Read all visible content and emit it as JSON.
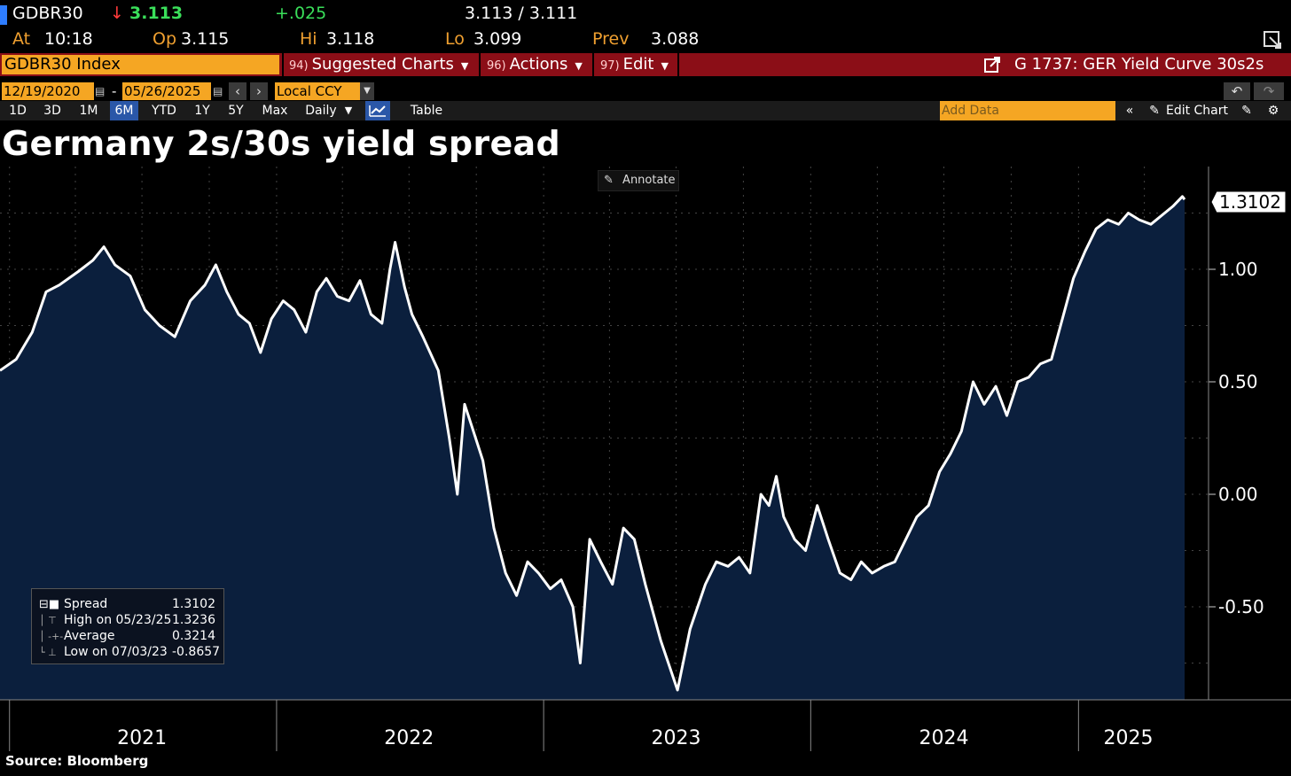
{
  "header": {
    "ticker": "GDBR30",
    "arrow": "↓",
    "price": "3.113",
    "change": "+.025",
    "bid_ask": "3.113 / 3.111",
    "at_label": "At",
    "at_value": "10:18",
    "op_label": "Op",
    "op_value": "3.115",
    "hi_label": "Hi",
    "hi_value": "3.118",
    "lo_label": "Lo",
    "lo_value": "3.099",
    "prev_label": "Prev",
    "prev_value": "3.088"
  },
  "menubar": {
    "security": "GDBR30 Index",
    "suggested_num": "94)",
    "suggested_label": "Suggested Charts",
    "actions_num": "96)",
    "actions_label": "Actions",
    "edit_num": "97)",
    "edit_label": "Edit",
    "chart_title": "G 1737: GER Yield Curve 30s2s"
  },
  "toolbar": {
    "date_start": "12/19/2020",
    "date_sep": "-",
    "date_end": "05/26/2025",
    "currency": "Local CCY",
    "ranges": [
      "1D",
      "3D",
      "1M",
      "6M",
      "YTD",
      "1Y",
      "5Y",
      "Max"
    ],
    "active_range": "6M",
    "period": "Daily",
    "table_label": "Table",
    "add_data_placeholder": "Add Data",
    "edit_chart_label": "Edit Chart"
  },
  "page_title": "Germany 2s/30s yield spread",
  "annotate_label": "Annotate",
  "source": "Source:  Bloomberg",
  "legend": {
    "spread_label": "Spread",
    "spread_value": "1.3102",
    "high_label": "High on 05/23/25",
    "high_value": "1.3236",
    "avg_label": "Average",
    "avg_value": "0.3214",
    "low_label": "Low on 07/03/23",
    "low_value": "-0.8657"
  },
  "colors": {
    "area_fill": "#0b1f3d",
    "line": "#ffffff",
    "accent_orange": "#f5a623",
    "menubar_red": "#8b0e17",
    "up_green": "#3adf5a",
    "down_red": "#ff3b3b"
  },
  "chart_data": {
    "type": "area",
    "x_labels": [
      "2021",
      "2022",
      "2023",
      "2024",
      "2025"
    ],
    "y_ticks": [
      "1.00",
      "0.50",
      "0.00",
      "-0.50"
    ],
    "ylim": [
      -0.9,
      1.45
    ],
    "last_value_label": "1.3102",
    "grid": true,
    "series": [
      {
        "values": [
          [
            "2020-12-19",
            0.55
          ],
          [
            "2021-01-10",
            0.6
          ],
          [
            "2021-02-01",
            0.72
          ],
          [
            "2021-02-20",
            0.9
          ],
          [
            "2021-03-10",
            0.93
          ],
          [
            "2021-04-05",
            0.99
          ],
          [
            "2021-04-25",
            1.04
          ],
          [
            "2021-05-10",
            1.1
          ],
          [
            "2021-05-25",
            1.02
          ],
          [
            "2021-06-15",
            0.97
          ],
          [
            "2021-07-05",
            0.82
          ],
          [
            "2021-07-25",
            0.75
          ],
          [
            "2021-08-15",
            0.7
          ],
          [
            "2021-09-05",
            0.86
          ],
          [
            "2021-09-25",
            0.93
          ],
          [
            "2021-10-10",
            1.02
          ],
          [
            "2021-10-25",
            0.9
          ],
          [
            "2021-11-10",
            0.8
          ],
          [
            "2021-11-25",
            0.76
          ],
          [
            "2021-12-10",
            0.63
          ],
          [
            "2021-12-25",
            0.78
          ],
          [
            "2022-01-10",
            0.86
          ],
          [
            "2022-01-25",
            0.82
          ],
          [
            "2022-02-10",
            0.72
          ],
          [
            "2022-02-25",
            0.9
          ],
          [
            "2022-03-10",
            0.96
          ],
          [
            "2022-03-25",
            0.88
          ],
          [
            "2022-04-10",
            0.86
          ],
          [
            "2022-04-25",
            0.95
          ],
          [
            "2022-05-10",
            0.8
          ],
          [
            "2022-05-25",
            0.76
          ],
          [
            "2022-06-05",
            1.0
          ],
          [
            "2022-06-12",
            1.12
          ],
          [
            "2022-06-25",
            0.92
          ],
          [
            "2022-07-05",
            0.8
          ],
          [
            "2022-07-20",
            0.7
          ],
          [
            "2022-08-10",
            0.55
          ],
          [
            "2022-08-25",
            0.25
          ],
          [
            "2022-09-05",
            0.0
          ],
          [
            "2022-09-15",
            0.4
          ],
          [
            "2022-09-25",
            0.3
          ],
          [
            "2022-10-10",
            0.15
          ],
          [
            "2022-10-25",
            -0.15
          ],
          [
            "2022-11-10",
            -0.35
          ],
          [
            "2022-11-25",
            -0.45
          ],
          [
            "2022-12-10",
            -0.3
          ],
          [
            "2022-12-25",
            -0.35
          ],
          [
            "2023-01-10",
            -0.42
          ],
          [
            "2023-01-25",
            -0.38
          ],
          [
            "2023-02-10",
            -0.5
          ],
          [
            "2023-02-20",
            -0.75
          ],
          [
            "2023-03-05",
            -0.2
          ],
          [
            "2023-03-20",
            -0.3
          ],
          [
            "2023-04-05",
            -0.4
          ],
          [
            "2023-04-20",
            -0.15
          ],
          [
            "2023-05-05",
            -0.2
          ],
          [
            "2023-05-20",
            -0.4
          ],
          [
            "2023-06-10",
            -0.65
          ],
          [
            "2023-07-03",
            -0.87
          ],
          [
            "2023-07-20",
            -0.6
          ],
          [
            "2023-08-10",
            -0.4
          ],
          [
            "2023-08-25",
            -0.3
          ],
          [
            "2023-09-10",
            -0.32
          ],
          [
            "2023-09-25",
            -0.28
          ],
          [
            "2023-10-10",
            -0.35
          ],
          [
            "2023-10-25",
            0.0
          ],
          [
            "2023-11-05",
            -0.05
          ],
          [
            "2023-11-15",
            0.08
          ],
          [
            "2023-11-25",
            -0.1
          ],
          [
            "2023-12-10",
            -0.2
          ],
          [
            "2023-12-25",
            -0.25
          ],
          [
            "2024-01-10",
            -0.05
          ],
          [
            "2024-01-25",
            -0.2
          ],
          [
            "2024-02-10",
            -0.35
          ],
          [
            "2024-02-25",
            -0.38
          ],
          [
            "2024-03-10",
            -0.3
          ],
          [
            "2024-03-25",
            -0.35
          ],
          [
            "2024-04-10",
            -0.32
          ],
          [
            "2024-04-25",
            -0.3
          ],
          [
            "2024-05-10",
            -0.2
          ],
          [
            "2024-05-25",
            -0.1
          ],
          [
            "2024-06-10",
            -0.05
          ],
          [
            "2024-06-25",
            0.1
          ],
          [
            "2024-07-10",
            0.18
          ],
          [
            "2024-07-25",
            0.28
          ],
          [
            "2024-08-10",
            0.5
          ],
          [
            "2024-08-25",
            0.4
          ],
          [
            "2024-09-10",
            0.48
          ],
          [
            "2024-09-25",
            0.35
          ],
          [
            "2024-10-10",
            0.5
          ],
          [
            "2024-10-25",
            0.52
          ],
          [
            "2024-11-10",
            0.58
          ],
          [
            "2024-11-25",
            0.6
          ],
          [
            "2024-12-10",
            0.78
          ],
          [
            "2024-12-25",
            0.96
          ],
          [
            "2025-01-10",
            1.08
          ],
          [
            "2025-01-25",
            1.18
          ],
          [
            "2025-02-10",
            1.22
          ],
          [
            "2025-02-25",
            1.2
          ],
          [
            "2025-03-10",
            1.25
          ],
          [
            "2025-03-25",
            1.22
          ],
          [
            "2025-04-10",
            1.2
          ],
          [
            "2025-05-10",
            1.28
          ],
          [
            "2025-05-23",
            1.3236
          ],
          [
            "2025-05-26",
            1.3102
          ]
        ]
      }
    ]
  }
}
